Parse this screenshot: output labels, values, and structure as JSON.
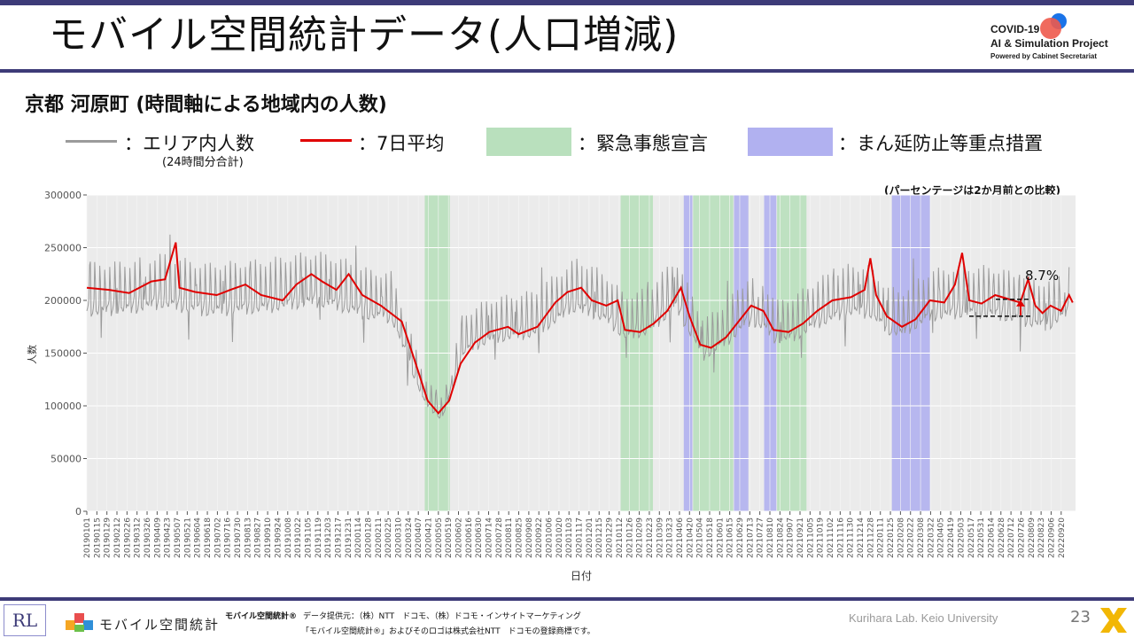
{
  "slide": {
    "title": "モバイル空間統計データ(人口増減)",
    "subtitle": "京都 河原町 (時間軸による地域内の人数)",
    "project": {
      "line1": "COVID-19",
      "line2": "AI & Simulation Project",
      "line3": "Powered by Cabinet Secretariat"
    },
    "page_number": "23",
    "colors": {
      "accent": "#3d3b78",
      "series_gray": "#9b9b9b",
      "series_red": "#e00000",
      "emergency": "#b9e0bd",
      "semi_emergency": "#b1b1f0",
      "plot_bg": "#ebebeb"
    }
  },
  "legend": {
    "area_label": "：エリア内人数",
    "area_note": "(24時間分合計)",
    "avg_label": "：7日平均",
    "emergency_label": "：緊急事態宣言",
    "semi_label": "：まん延防止等重点措置"
  },
  "annotation": {
    "note": "(パーセンテージは2か月前との比較)",
    "percent": "8.7%"
  },
  "footer": {
    "brand": "モバイル空間統計",
    "product_mark": "モバイル空間統計®",
    "source_line": "データ提供元：（株）NTT　ドコモ、（株）ドコモ・インサイトマーケティング",
    "trademark_line": "「モバイル空間統計®」およびそのロゴは株式会社NTT　ドコモの登録商標です。",
    "credit": "Kurihara Lab. Keio University",
    "lab_mark": "RL"
  },
  "chart_data": {
    "type": "line",
    "xlabel": "日付",
    "ylabel": "人数",
    "ylim": [
      0,
      300000
    ],
    "yticks": [
      0,
      50000,
      100000,
      150000,
      200000,
      250000,
      300000
    ],
    "ytick_labels": [
      "0",
      "50000",
      "100000",
      "150000",
      "200000",
      "250000",
      "300000"
    ],
    "xlim": [
      "2019-01-01",
      "2022-10-10"
    ],
    "xtick_labels": [
      "20190101",
      "20190115",
      "20190129",
      "20190212",
      "20190226",
      "20190312",
      "20190326",
      "20190409",
      "20190423",
      "20190507",
      "20190521",
      "20190604",
      "20190618",
      "20190702",
      "20190716",
      "20190730",
      "20190813",
      "20190827",
      "20190910",
      "20190924",
      "20191008",
      "20191022",
      "20191105",
      "20191119",
      "20191203",
      "20191217",
      "20191231",
      "20200114",
      "20200128",
      "20200211",
      "20200225",
      "20200310",
      "20200324",
      "20200407",
      "20200421",
      "20200505",
      "20200519",
      "20200602",
      "20200616",
      "20200630",
      "20200714",
      "20200728",
      "20200811",
      "20200825",
      "20200908",
      "20200922",
      "20201006",
      "20201020",
      "20201103",
      "20201117",
      "20201201",
      "20201215",
      "20201229",
      "20210112",
      "20210126",
      "20210209",
      "20210223",
      "20210309",
      "20210323",
      "20210406",
      "20210420",
      "20210504",
      "20210518",
      "20210601",
      "20210615",
      "20210629",
      "20210713",
      "20210727",
      "20210810",
      "20210824",
      "20210907",
      "20210921",
      "20211005",
      "20211019",
      "20211102",
      "20211116",
      "20211130",
      "20211214",
      "20211228",
      "20220111",
      "20220125",
      "20220208",
      "20220222",
      "20220308",
      "20220322",
      "20220405",
      "20220419",
      "20220503",
      "20220517",
      "20220531",
      "20220614",
      "20220628",
      "20220712",
      "20220726",
      "20220809",
      "20220823",
      "20220906",
      "20220920"
    ],
    "periods": [
      {
        "kind": "emergency",
        "start": "2020-04-16",
        "end": "2020-05-21"
      },
      {
        "kind": "emergency",
        "start": "2021-01-14",
        "end": "2021-02-28"
      },
      {
        "kind": "semi",
        "start": "2021-04-12",
        "end": "2021-04-24"
      },
      {
        "kind": "emergency",
        "start": "2021-04-25",
        "end": "2021-06-20"
      },
      {
        "kind": "semi",
        "start": "2021-06-21",
        "end": "2021-07-11"
      },
      {
        "kind": "semi",
        "start": "2021-08-02",
        "end": "2021-08-19"
      },
      {
        "kind": "emergency",
        "start": "2021-08-20",
        "end": "2021-09-30"
      },
      {
        "kind": "semi",
        "start": "2022-01-27",
        "end": "2022-03-21"
      }
    ],
    "series": [
      {
        "name": "エリア内人数",
        "style": "daily_gray",
        "anchors": [
          {
            "x": "2019-01-01",
            "y": 200000
          },
          {
            "x": "2019-03-01",
            "y": 202000
          },
          {
            "x": "2019-04-15",
            "y": 208000
          },
          {
            "x": "2019-06-15",
            "y": 200000
          },
          {
            "x": "2019-09-01",
            "y": 203000
          },
          {
            "x": "2019-11-15",
            "y": 210000
          },
          {
            "x": "2019-12-20",
            "y": 205000
          },
          {
            "x": "2020-02-01",
            "y": 195000
          },
          {
            "x": "2020-03-01",
            "y": 193000
          },
          {
            "x": "2020-04-15",
            "y": 110000
          },
          {
            "x": "2020-05-10",
            "y": 92000
          },
          {
            "x": "2020-06-10",
            "y": 160000
          },
          {
            "x": "2020-07-15",
            "y": 172000
          },
          {
            "x": "2020-09-15",
            "y": 178000
          },
          {
            "x": "2020-11-15",
            "y": 205000
          },
          {
            "x": "2020-12-25",
            "y": 192000
          },
          {
            "x": "2021-01-20",
            "y": 175000
          },
          {
            "x": "2021-02-20",
            "y": 180000
          },
          {
            "x": "2021-04-01",
            "y": 205000
          },
          {
            "x": "2021-04-20",
            "y": 180000
          },
          {
            "x": "2021-05-10",
            "y": 155000
          },
          {
            "x": "2021-06-15",
            "y": 172000
          },
          {
            "x": "2021-07-10",
            "y": 190000
          },
          {
            "x": "2021-08-01",
            "y": 185000
          },
          {
            "x": "2021-08-20",
            "y": 170000
          },
          {
            "x": "2021-09-15",
            "y": 175000
          },
          {
            "x": "2021-10-15",
            "y": 188000
          },
          {
            "x": "2021-12-01",
            "y": 200000
          },
          {
            "x": "2021-12-28",
            "y": 198000
          },
          {
            "x": "2022-01-20",
            "y": 182000
          },
          {
            "x": "2022-02-10",
            "y": 178000
          },
          {
            "x": "2022-03-21",
            "y": 195000
          },
          {
            "x": "2022-05-01",
            "y": 198000
          },
          {
            "x": "2022-06-15",
            "y": 198000
          },
          {
            "x": "2022-08-01",
            "y": 190000
          },
          {
            "x": "2022-09-01",
            "y": 185000
          },
          {
            "x": "2022-10-01",
            "y": 200000
          }
        ]
      },
      {
        "name": "7日平均",
        "style": "avg_red",
        "points": [
          {
            "x": "2019-01-01",
            "y": 212000
          },
          {
            "x": "2019-02-01",
            "y": 210000
          },
          {
            "x": "2019-03-01",
            "y": 207000
          },
          {
            "x": "2019-04-01",
            "y": 218000
          },
          {
            "x": "2019-04-20",
            "y": 220000
          },
          {
            "x": "2019-05-05",
            "y": 255000
          },
          {
            "x": "2019-05-10",
            "y": 212000
          },
          {
            "x": "2019-06-01",
            "y": 208000
          },
          {
            "x": "2019-07-01",
            "y": 205000
          },
          {
            "x": "2019-07-20",
            "y": 210000
          },
          {
            "x": "2019-08-10",
            "y": 215000
          },
          {
            "x": "2019-09-01",
            "y": 205000
          },
          {
            "x": "2019-10-01",
            "y": 200000
          },
          {
            "x": "2019-10-20",
            "y": 215000
          },
          {
            "x": "2019-11-10",
            "y": 225000
          },
          {
            "x": "2019-11-25",
            "y": 218000
          },
          {
            "x": "2019-12-15",
            "y": 210000
          },
          {
            "x": "2020-01-01",
            "y": 225000
          },
          {
            "x": "2020-01-20",
            "y": 205000
          },
          {
            "x": "2020-02-15",
            "y": 195000
          },
          {
            "x": "2020-03-15",
            "y": 180000
          },
          {
            "x": "2020-04-01",
            "y": 145000
          },
          {
            "x": "2020-04-20",
            "y": 105000
          },
          {
            "x": "2020-05-05",
            "y": 93000
          },
          {
            "x": "2020-05-20",
            "y": 105000
          },
          {
            "x": "2020-06-05",
            "y": 140000
          },
          {
            "x": "2020-06-25",
            "y": 160000
          },
          {
            "x": "2020-07-15",
            "y": 170000
          },
          {
            "x": "2020-08-10",
            "y": 175000
          },
          {
            "x": "2020-08-25",
            "y": 168000
          },
          {
            "x": "2020-09-20",
            "y": 175000
          },
          {
            "x": "2020-10-15",
            "y": 198000
          },
          {
            "x": "2020-11-01",
            "y": 208000
          },
          {
            "x": "2020-11-20",
            "y": 212000
          },
          {
            "x": "2020-12-05",
            "y": 200000
          },
          {
            "x": "2020-12-25",
            "y": 195000
          },
          {
            "x": "2021-01-10",
            "y": 200000
          },
          {
            "x": "2021-01-20",
            "y": 172000
          },
          {
            "x": "2021-02-10",
            "y": 170000
          },
          {
            "x": "2021-03-01",
            "y": 178000
          },
          {
            "x": "2021-03-20",
            "y": 190000
          },
          {
            "x": "2021-04-08",
            "y": 212000
          },
          {
            "x": "2021-04-20",
            "y": 185000
          },
          {
            "x": "2021-05-05",
            "y": 158000
          },
          {
            "x": "2021-05-20",
            "y": 155000
          },
          {
            "x": "2021-06-10",
            "y": 165000
          },
          {
            "x": "2021-06-25",
            "y": 178000
          },
          {
            "x": "2021-07-15",
            "y": 195000
          },
          {
            "x": "2021-08-01",
            "y": 190000
          },
          {
            "x": "2021-08-15",
            "y": 172000
          },
          {
            "x": "2021-09-05",
            "y": 170000
          },
          {
            "x": "2021-09-25",
            "y": 178000
          },
          {
            "x": "2021-10-15",
            "y": 190000
          },
          {
            "x": "2021-11-05",
            "y": 200000
          },
          {
            "x": "2021-12-01",
            "y": 203000
          },
          {
            "x": "2021-12-20",
            "y": 210000
          },
          {
            "x": "2021-12-28",
            "y": 240000
          },
          {
            "x": "2022-01-05",
            "y": 205000
          },
          {
            "x": "2022-01-20",
            "y": 185000
          },
          {
            "x": "2022-02-10",
            "y": 175000
          },
          {
            "x": "2022-03-01",
            "y": 182000
          },
          {
            "x": "2022-03-21",
            "y": 200000
          },
          {
            "x": "2022-04-10",
            "y": 198000
          },
          {
            "x": "2022-04-25",
            "y": 215000
          },
          {
            "x": "2022-05-05",
            "y": 245000
          },
          {
            "x": "2022-05-15",
            "y": 200000
          },
          {
            "x": "2022-06-01",
            "y": 197000
          },
          {
            "x": "2022-06-20",
            "y": 205000
          },
          {
            "x": "2022-07-15",
            "y": 200000
          },
          {
            "x": "2022-07-25",
            "y": 198000
          },
          {
            "x": "2022-08-05",
            "y": 220000
          },
          {
            "x": "2022-08-15",
            "y": 195000
          },
          {
            "x": "2022-08-25",
            "y": 188000
          },
          {
            "x": "2022-09-05",
            "y": 195000
          },
          {
            "x": "2022-09-20",
            "y": 190000
          },
          {
            "x": "2022-10-01",
            "y": 205000
          },
          {
            "x": "2022-10-06",
            "y": 198000
          }
        ]
      }
    ],
    "comparison": {
      "current": 201000,
      "previous": 185000,
      "percent": "8.7%"
    }
  }
}
